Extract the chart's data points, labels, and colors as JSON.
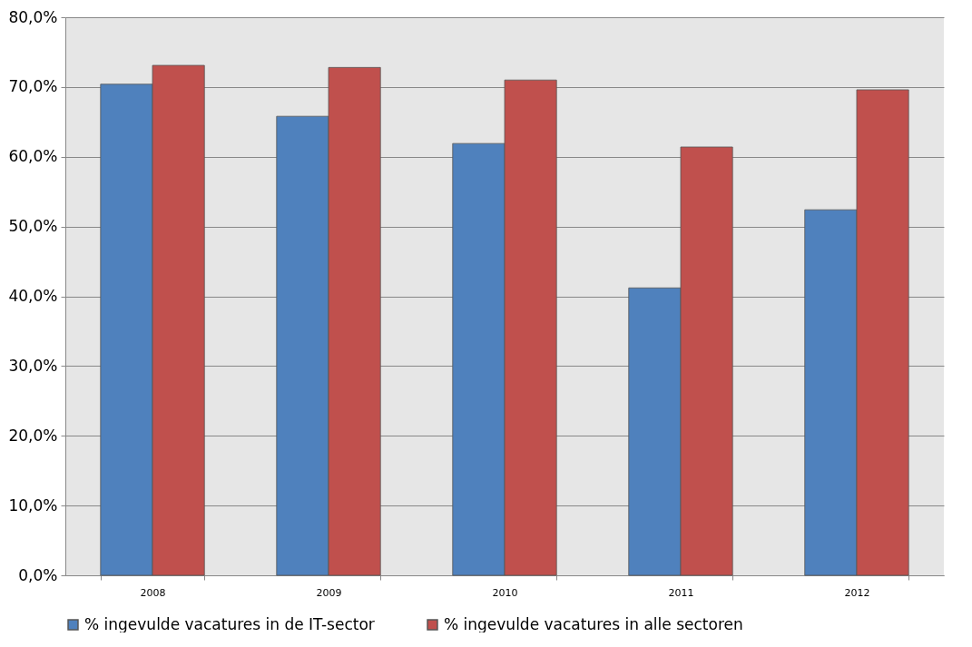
{
  "chart_data": {
    "type": "bar",
    "categories": [
      "2008",
      "2009",
      "2010",
      "2011",
      "2012"
    ],
    "series": [
      {
        "name": "% ingevulde vacatures in de IT-sector",
        "color": "#4f81bd",
        "values": [
          70.4,
          65.8,
          61.9,
          41.2,
          52.4
        ]
      },
      {
        "name": "% ingevulde vacatures in alle sectoren",
        "color": "#c0504d",
        "values": [
          73.1,
          72.8,
          71.0,
          61.4,
          69.6
        ]
      }
    ],
    "ylim": [
      0,
      80
    ],
    "yticks": [
      {
        "value": 0,
        "label": "0,0%"
      },
      {
        "value": 10,
        "label": "10,0%"
      },
      {
        "value": 20,
        "label": "20,0%"
      },
      {
        "value": 30,
        "label": "30,0%"
      },
      {
        "value": 40,
        "label": "40,0%"
      },
      {
        "value": 50,
        "label": "50,0%"
      },
      {
        "value": 60,
        "label": "60,0%"
      },
      {
        "value": 70,
        "label": "70,0%"
      },
      {
        "value": 80,
        "label": "80,0%"
      }
    ],
    "grid": "y",
    "legend": "bottom"
  }
}
